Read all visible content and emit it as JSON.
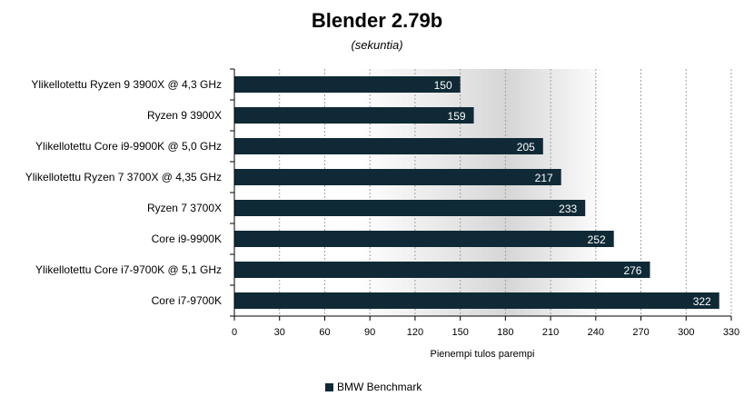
{
  "chart_data": {
    "type": "bar",
    "orientation": "horizontal",
    "title": "Blender 2.79b",
    "subtitle": "(sekuntia)",
    "xlabel": "Pienempi tulos parempi",
    "ylabel": "",
    "xlim": [
      0,
      330
    ],
    "xticks": [
      0,
      30,
      60,
      90,
      120,
      150,
      180,
      210,
      240,
      270,
      300,
      330
    ],
    "categories": [
      "Ylikellotettu Ryzen 9 3900X @ 4,3 GHz",
      "Ryzen 9 3900X",
      "Ylikellotettu Core i9-9900K @ 5,0 GHz",
      "Ylikellotettu Ryzen 7 3700X @ 4,35 GHz",
      "Ryzen 7 3700X",
      "Core i9-9900K",
      "Ylikellotettu Core i7-9700K @ 5,1 GHz",
      "Core i7-9700K"
    ],
    "series": [
      {
        "name": "BMW Benchmark",
        "values": [
          150,
          159,
          205,
          217,
          233,
          252,
          276,
          322
        ]
      }
    ],
    "grid": "vertical dashed",
    "legend_position": "bottom",
    "bar_color": "#0f2a36"
  }
}
